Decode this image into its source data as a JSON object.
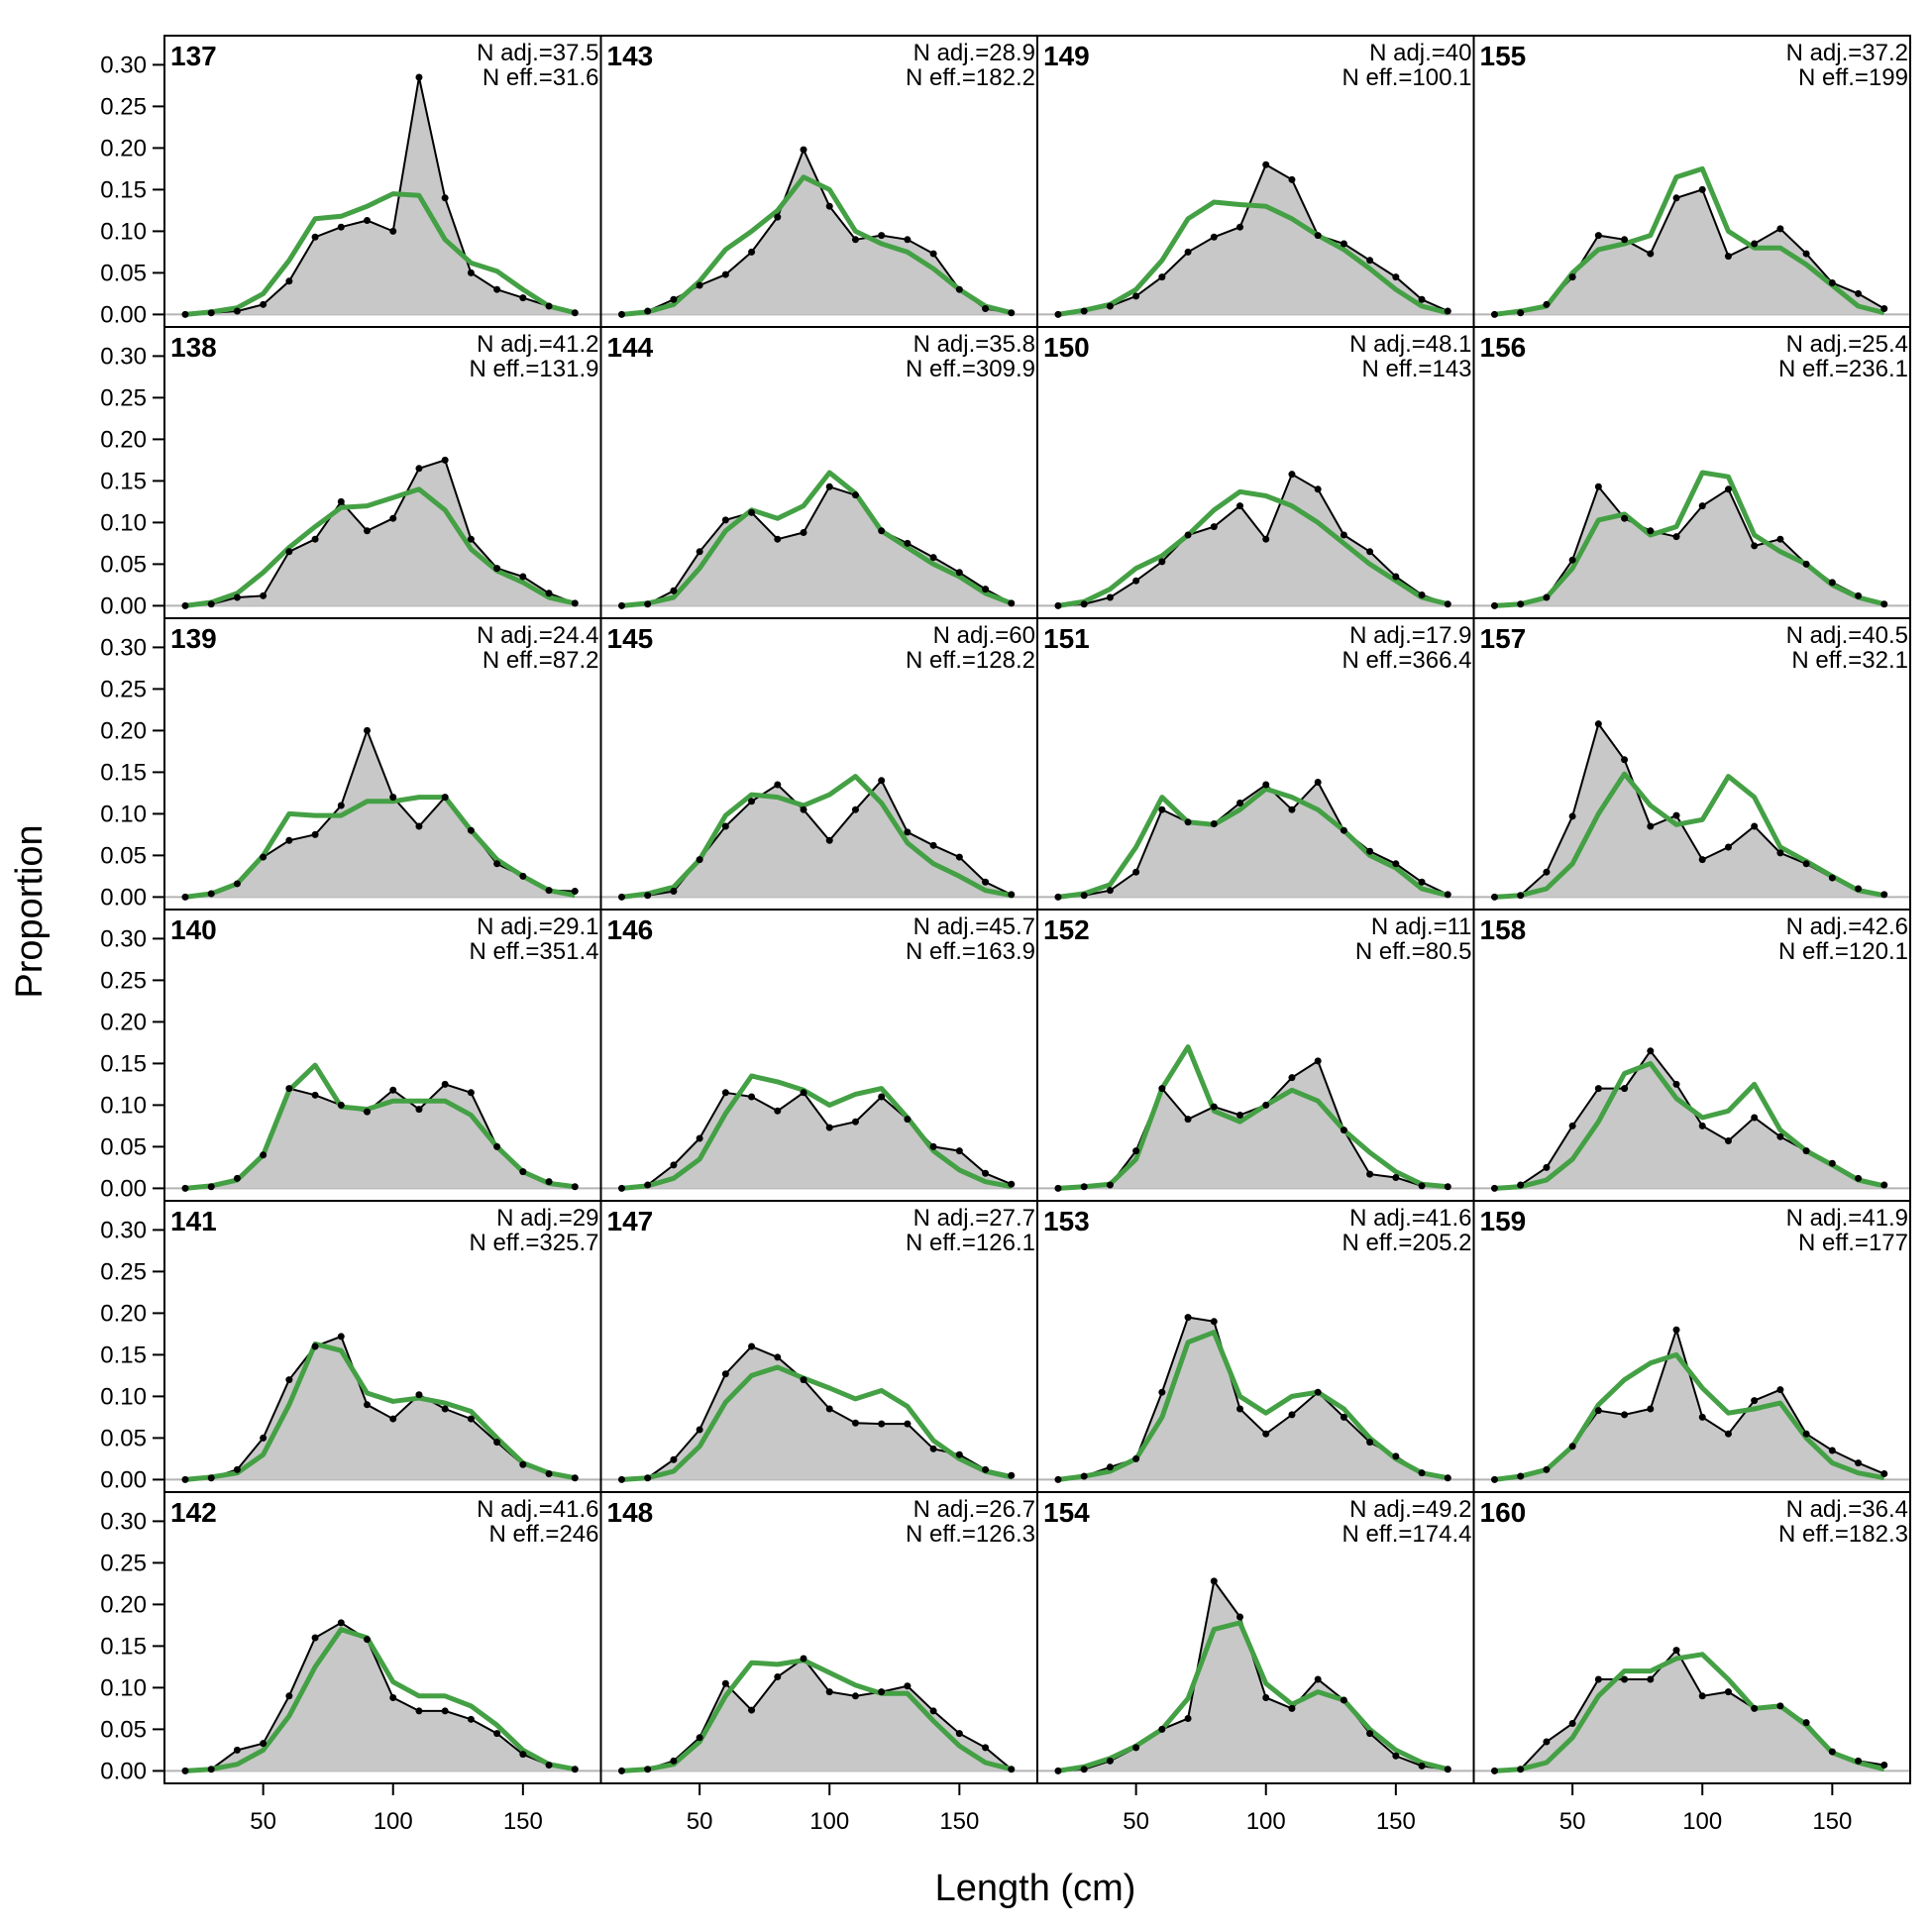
{
  "chart_data": {
    "type": "area",
    "xlabel": "Length (cm)",
    "ylabel": "Proportion",
    "xlim": [
      12,
      180
    ],
    "ylim": [
      -0.015,
      0.335
    ],
    "x": [
      20,
      30,
      40,
      50,
      60,
      70,
      80,
      90,
      100,
      110,
      120,
      130,
      140,
      150,
      160,
      170
    ],
    "x_ticks": [
      50,
      100,
      150
    ],
    "x_tick_labels": [
      "50",
      "100",
      "150"
    ],
    "y_ticks": [
      0,
      0.05,
      0.1,
      0.15,
      0.2,
      0.25,
      0.3
    ],
    "y_tick_labels": [
      "0.00",
      "0.05",
      "0.10",
      "0.15",
      "0.20",
      "0.25",
      "0.30"
    ],
    "layout": {
      "columns": 4,
      "rows": 6
    },
    "colors": {
      "observed_fill": "#c8c8c8",
      "observed_line": "#000000",
      "expected_line": "#44a044",
      "zero_line": "#b4b4b4"
    },
    "panels": [
      {
        "id": "137",
        "n_adj": "N adj.=37.5",
        "n_eff": "N eff.=31.6",
        "observed": [
          0,
          0.002,
          0.004,
          0.012,
          0.04,
          0.093,
          0.105,
          0.113,
          0.1,
          0.285,
          0.14,
          0.05,
          0.03,
          0.02,
          0.01,
          0.002
        ],
        "expected": [
          0,
          0.003,
          0.008,
          0.025,
          0.065,
          0.115,
          0.118,
          0.13,
          0.145,
          0.143,
          0.09,
          0.062,
          0.052,
          0.03,
          0.01,
          0.002
        ]
      },
      {
        "id": "138",
        "n_adj": "N adj.=41.2",
        "n_eff": "N eff.=131.9",
        "observed": [
          0,
          0.002,
          0.01,
          0.012,
          0.065,
          0.08,
          0.125,
          0.09,
          0.105,
          0.165,
          0.175,
          0.08,
          0.045,
          0.035,
          0.015,
          0.003
        ],
        "expected": [
          0,
          0.004,
          0.015,
          0.04,
          0.07,
          0.095,
          0.118,
          0.12,
          0.13,
          0.14,
          0.115,
          0.068,
          0.042,
          0.028,
          0.01,
          0.003
        ]
      },
      {
        "id": "139",
        "n_adj": "N adj.=24.4",
        "n_eff": "N eff.=87.2",
        "observed": [
          0,
          0.004,
          0.016,
          0.048,
          0.068,
          0.075,
          0.11,
          0.2,
          0.12,
          0.085,
          0.12,
          0.08,
          0.04,
          0.025,
          0.008,
          0.007
        ],
        "expected": [
          0,
          0.004,
          0.016,
          0.05,
          0.1,
          0.098,
          0.098,
          0.115,
          0.115,
          0.12,
          0.12,
          0.08,
          0.045,
          0.025,
          0.008,
          0.002
        ]
      },
      {
        "id": "140",
        "n_adj": "N adj.=29.1",
        "n_eff": "N eff.=351.4",
        "observed": [
          0,
          0.002,
          0.012,
          0.04,
          0.12,
          0.112,
          0.1,
          0.092,
          0.118,
          0.095,
          0.125,
          0.115,
          0.05,
          0.02,
          0.008,
          0.002
        ],
        "expected": [
          0,
          0.003,
          0.01,
          0.04,
          0.118,
          0.148,
          0.098,
          0.095,
          0.105,
          0.105,
          0.105,
          0.088,
          0.05,
          0.02,
          0.006,
          0.002
        ]
      },
      {
        "id": "141",
        "n_adj": "N adj.=29",
        "n_eff": "N eff.=325.7",
        "observed": [
          0,
          0.002,
          0.012,
          0.05,
          0.12,
          0.16,
          0.172,
          0.09,
          0.073,
          0.102,
          0.085,
          0.073,
          0.045,
          0.018,
          0.007,
          0.002
        ],
        "expected": [
          0,
          0.003,
          0.008,
          0.03,
          0.09,
          0.163,
          0.155,
          0.104,
          0.094,
          0.098,
          0.092,
          0.082,
          0.05,
          0.02,
          0.008,
          0.002
        ]
      },
      {
        "id": "142",
        "n_adj": "N adj.=41.6",
        "n_eff": "N eff.=246",
        "observed": [
          0,
          0.002,
          0.025,
          0.033,
          0.09,
          0.16,
          0.178,
          0.158,
          0.088,
          0.072,
          0.072,
          0.062,
          0.045,
          0.02,
          0.007,
          0.002
        ],
        "expected": [
          0,
          0.002,
          0.008,
          0.025,
          0.066,
          0.125,
          0.17,
          0.16,
          0.107,
          0.09,
          0.09,
          0.078,
          0.055,
          0.025,
          0.008,
          0.002
        ]
      },
      {
        "id": "143",
        "n_adj": "N adj.=28.9",
        "n_eff": "N eff.=182.2",
        "observed": [
          0,
          0.004,
          0.018,
          0.035,
          0.048,
          0.075,
          0.117,
          0.198,
          0.13,
          0.09,
          0.095,
          0.09,
          0.073,
          0.03,
          0.007,
          0.002
        ],
        "expected": [
          0,
          0.003,
          0.012,
          0.04,
          0.078,
          0.1,
          0.125,
          0.165,
          0.15,
          0.1,
          0.085,
          0.075,
          0.055,
          0.03,
          0.01,
          0.002
        ]
      },
      {
        "id": "144",
        "n_adj": "N adj.=35.8",
        "n_eff": "N eff.=309.9",
        "observed": [
          0,
          0.002,
          0.018,
          0.065,
          0.103,
          0.112,
          0.08,
          0.088,
          0.143,
          0.133,
          0.09,
          0.075,
          0.058,
          0.04,
          0.02,
          0.003
        ],
        "expected": [
          0,
          0.003,
          0.01,
          0.045,
          0.09,
          0.115,
          0.105,
          0.12,
          0.16,
          0.135,
          0.09,
          0.07,
          0.05,
          0.035,
          0.015,
          0.003
        ]
      },
      {
        "id": "145",
        "n_adj": "N adj.=60",
        "n_eff": "N eff.=128.2",
        "observed": [
          0,
          0.002,
          0.007,
          0.045,
          0.085,
          0.115,
          0.135,
          0.105,
          0.068,
          0.105,
          0.14,
          0.078,
          0.062,
          0.048,
          0.018,
          0.003
        ],
        "expected": [
          0,
          0.004,
          0.012,
          0.045,
          0.098,
          0.123,
          0.12,
          0.11,
          0.123,
          0.145,
          0.113,
          0.065,
          0.04,
          0.025,
          0.008,
          0.002
        ]
      },
      {
        "id": "146",
        "n_adj": "N adj.=45.7",
        "n_eff": "N eff.=163.9",
        "observed": [
          0,
          0.004,
          0.028,
          0.06,
          0.115,
          0.11,
          0.093,
          0.115,
          0.073,
          0.08,
          0.11,
          0.083,
          0.05,
          0.045,
          0.018,
          0.005
        ],
        "expected": [
          0,
          0.003,
          0.012,
          0.035,
          0.09,
          0.135,
          0.128,
          0.118,
          0.1,
          0.113,
          0.12,
          0.085,
          0.045,
          0.022,
          0.008,
          0.002
        ]
      },
      {
        "id": "147",
        "n_adj": "N adj.=27.7",
        "n_eff": "N eff.=126.1",
        "observed": [
          0,
          0.002,
          0.024,
          0.06,
          0.127,
          0.16,
          0.147,
          0.12,
          0.085,
          0.068,
          0.067,
          0.067,
          0.037,
          0.03,
          0.012,
          0.005
        ],
        "expected": [
          0,
          0.002,
          0.01,
          0.04,
          0.093,
          0.125,
          0.135,
          0.122,
          0.11,
          0.097,
          0.107,
          0.088,
          0.047,
          0.025,
          0.01,
          0.003
        ]
      },
      {
        "id": "148",
        "n_adj": "N adj.=26.7",
        "n_eff": "N eff.=126.3",
        "observed": [
          0,
          0.002,
          0.012,
          0.04,
          0.105,
          0.073,
          0.113,
          0.135,
          0.095,
          0.09,
          0.095,
          0.102,
          0.072,
          0.045,
          0.028,
          0.002
        ],
        "expected": [
          0,
          0.002,
          0.008,
          0.035,
          0.09,
          0.13,
          0.128,
          0.133,
          0.118,
          0.103,
          0.093,
          0.093,
          0.06,
          0.03,
          0.01,
          0.002
        ]
      },
      {
        "id": "149",
        "n_adj": "N adj.=40",
        "n_eff": "N eff.=100.1",
        "observed": [
          0,
          0.004,
          0.01,
          0.022,
          0.045,
          0.075,
          0.093,
          0.105,
          0.18,
          0.162,
          0.095,
          0.085,
          0.065,
          0.045,
          0.018,
          0.004
        ],
        "expected": [
          0,
          0.005,
          0.012,
          0.03,
          0.065,
          0.115,
          0.135,
          0.132,
          0.13,
          0.115,
          0.095,
          0.078,
          0.055,
          0.03,
          0.01,
          0.002
        ]
      },
      {
        "id": "150",
        "n_adj": "N adj.=48.1",
        "n_eff": "N eff.=143",
        "observed": [
          0,
          0.002,
          0.01,
          0.03,
          0.053,
          0.085,
          0.095,
          0.12,
          0.08,
          0.158,
          0.14,
          0.085,
          0.065,
          0.035,
          0.013,
          0.002
        ],
        "expected": [
          0,
          0.005,
          0.02,
          0.045,
          0.06,
          0.085,
          0.115,
          0.137,
          0.132,
          0.12,
          0.1,
          0.075,
          0.05,
          0.03,
          0.01,
          0.002
        ]
      },
      {
        "id": "151",
        "n_adj": "N adj.=17.9",
        "n_eff": "N eff.=366.4",
        "observed": [
          0,
          0.002,
          0.008,
          0.03,
          0.105,
          0.09,
          0.088,
          0.113,
          0.135,
          0.105,
          0.138,
          0.08,
          0.055,
          0.04,
          0.018,
          0.003
        ],
        "expected": [
          0,
          0.004,
          0.015,
          0.06,
          0.12,
          0.09,
          0.087,
          0.105,
          0.13,
          0.12,
          0.105,
          0.08,
          0.05,
          0.035,
          0.01,
          0.002
        ]
      },
      {
        "id": "152",
        "n_adj": "N adj.=11",
        "n_eff": "N eff.=80.5",
        "observed": [
          0,
          0.002,
          0.004,
          0.045,
          0.12,
          0.083,
          0.098,
          0.088,
          0.1,
          0.133,
          0.153,
          0.07,
          0.017,
          0.013,
          0.003,
          0.002
        ],
        "expected": [
          0,
          0.002,
          0.005,
          0.035,
          0.12,
          0.17,
          0.093,
          0.08,
          0.1,
          0.118,
          0.105,
          0.07,
          0.043,
          0.02,
          0.005,
          0.002
        ]
      },
      {
        "id": "153",
        "n_adj": "N adj.=41.6",
        "n_eff": "N eff.=205.2",
        "observed": [
          0,
          0.004,
          0.015,
          0.025,
          0.105,
          0.195,
          0.19,
          0.085,
          0.055,
          0.078,
          0.105,
          0.075,
          0.045,
          0.028,
          0.008,
          0.002
        ],
        "expected": [
          0,
          0.004,
          0.01,
          0.025,
          0.075,
          0.165,
          0.177,
          0.1,
          0.08,
          0.1,
          0.105,
          0.085,
          0.05,
          0.025,
          0.008,
          0.002
        ]
      },
      {
        "id": "154",
        "n_adj": "N adj.=49.2",
        "n_eff": "N eff.=174.4",
        "observed": [
          0,
          0.002,
          0.012,
          0.028,
          0.05,
          0.063,
          0.228,
          0.185,
          0.088,
          0.075,
          0.11,
          0.085,
          0.045,
          0.018,
          0.006,
          0.002
        ],
        "expected": [
          0,
          0.005,
          0.015,
          0.03,
          0.05,
          0.087,
          0.17,
          0.178,
          0.105,
          0.08,
          0.095,
          0.085,
          0.05,
          0.025,
          0.01,
          0.002
        ]
      },
      {
        "id": "155",
        "n_adj": "N adj.=37.2",
        "n_eff": "N eff.=199",
        "observed": [
          0,
          0.002,
          0.012,
          0.045,
          0.095,
          0.09,
          0.073,
          0.14,
          0.15,
          0.07,
          0.085,
          0.103,
          0.073,
          0.038,
          0.025,
          0.007
        ],
        "expected": [
          0,
          0.004,
          0.01,
          0.05,
          0.078,
          0.085,
          0.095,
          0.165,
          0.175,
          0.1,
          0.08,
          0.08,
          0.06,
          0.035,
          0.01,
          0.002
        ]
      },
      {
        "id": "156",
        "n_adj": "N adj.=25.4",
        "n_eff": "N eff.=236.1",
        "observed": [
          0,
          0.002,
          0.01,
          0.055,
          0.143,
          0.105,
          0.09,
          0.083,
          0.12,
          0.14,
          0.072,
          0.08,
          0.05,
          0.028,
          0.012,
          0.002
        ],
        "expected": [
          0,
          0.002,
          0.01,
          0.045,
          0.103,
          0.11,
          0.085,
          0.095,
          0.16,
          0.155,
          0.085,
          0.065,
          0.05,
          0.025,
          0.01,
          0.002
        ]
      },
      {
        "id": "157",
        "n_adj": "N adj.=40.5",
        "n_eff": "N eff.=32.1",
        "observed": [
          0,
          0.002,
          0.03,
          0.097,
          0.208,
          0.165,
          0.085,
          0.098,
          0.045,
          0.06,
          0.085,
          0.053,
          0.04,
          0.023,
          0.01,
          0.003
        ],
        "expected": [
          0,
          0.002,
          0.01,
          0.04,
          0.1,
          0.148,
          0.11,
          0.087,
          0.093,
          0.145,
          0.12,
          0.06,
          0.043,
          0.025,
          0.008,
          0.002
        ]
      },
      {
        "id": "158",
        "n_adj": "N adj.=42.6",
        "n_eff": "N eff.=120.1",
        "observed": [
          0,
          0.004,
          0.025,
          0.075,
          0.12,
          0.12,
          0.165,
          0.125,
          0.075,
          0.057,
          0.085,
          0.062,
          0.045,
          0.03,
          0.012,
          0.004
        ],
        "expected": [
          0,
          0.002,
          0.01,
          0.035,
          0.08,
          0.138,
          0.15,
          0.108,
          0.085,
          0.093,
          0.125,
          0.07,
          0.045,
          0.028,
          0.01,
          0.003
        ]
      },
      {
        "id": "159",
        "n_adj": "N adj.=41.9",
        "n_eff": "N eff.=177",
        "observed": [
          0,
          0.004,
          0.012,
          0.04,
          0.083,
          0.078,
          0.085,
          0.18,
          0.075,
          0.055,
          0.095,
          0.108,
          0.055,
          0.035,
          0.02,
          0.007
        ],
        "expected": [
          0,
          0.004,
          0.012,
          0.04,
          0.09,
          0.12,
          0.14,
          0.15,
          0.11,
          0.08,
          0.085,
          0.092,
          0.05,
          0.02,
          0.008,
          0.002
        ]
      },
      {
        "id": "160",
        "n_adj": "N adj.=36.4",
        "n_eff": "N eff.=182.3",
        "observed": [
          0,
          0.002,
          0.035,
          0.057,
          0.11,
          0.11,
          0.11,
          0.145,
          0.09,
          0.095,
          0.075,
          0.078,
          0.058,
          0.023,
          0.012,
          0.007
        ],
        "expected": [
          0,
          0.002,
          0.01,
          0.04,
          0.09,
          0.12,
          0.12,
          0.135,
          0.14,
          0.11,
          0.075,
          0.078,
          0.055,
          0.022,
          0.01,
          0.002
        ]
      }
    ]
  }
}
